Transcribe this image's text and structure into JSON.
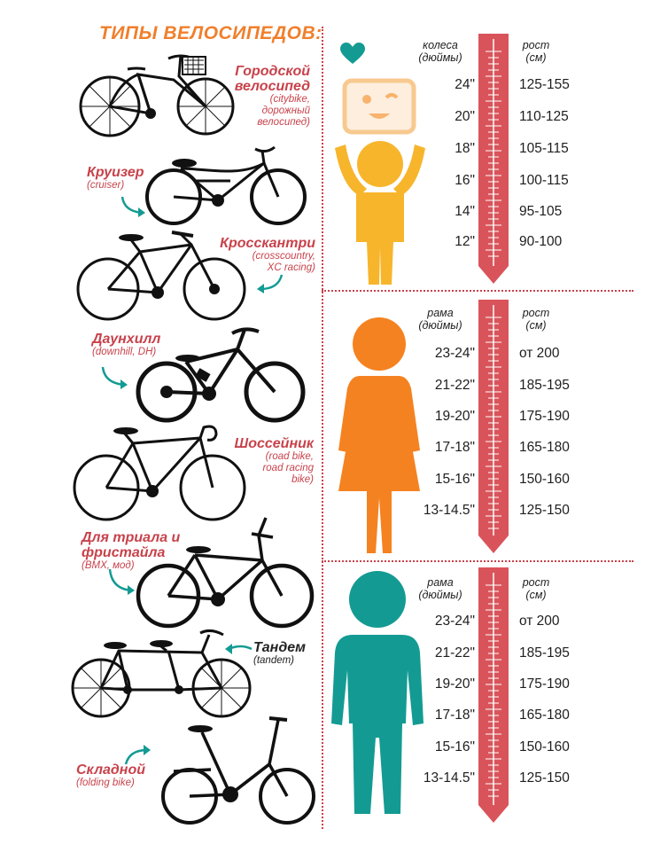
{
  "title": "ТИПЫ ВЕЛОСИПЕДОВ:",
  "bikes": [
    {
      "name": "Городской велосипед",
      "name_line1": "Городской",
      "name_line2": "велосипед",
      "sub_lines": [
        "(citybike,",
        "дорожный",
        "велосипед)"
      ]
    },
    {
      "name": "Круизер",
      "sub_lines": [
        "(cruiser)"
      ]
    },
    {
      "name": "Кросскантри",
      "sub_lines": [
        "(crosscountry,",
        "XC racing)"
      ]
    },
    {
      "name": "Даунхилл",
      "sub_lines": [
        "(downhill, DH)"
      ]
    },
    {
      "name": "Шоссейник",
      "sub_lines": [
        "(road bike,",
        "road racing",
        "bike)"
      ]
    },
    {
      "name": "Для триала и фристайла",
      "name_line1": "Для триала и",
      "name_line2": "фристайла",
      "sub_lines": [
        "(BMX, мод)"
      ]
    },
    {
      "name": "Тандем",
      "sub_lines": [
        "(tandem)"
      ]
    },
    {
      "name": "Складной",
      "sub_lines": [
        "(folding bike)"
      ]
    }
  ],
  "sections": [
    {
      "figure": "child-icon",
      "left_header": [
        "колеса",
        "(дюймы)"
      ],
      "right_header": [
        "рост",
        "(см)"
      ],
      "rows": [
        {
          "size": "24\"",
          "height": "125-155"
        },
        {
          "size": "20\"",
          "height": "110-125"
        },
        {
          "size": "18\"",
          "height": "105-115"
        },
        {
          "size": "16\"",
          "height": "100-115"
        },
        {
          "size": "14\"",
          "height": "95-105"
        },
        {
          "size": "12\"",
          "height": "90-100"
        }
      ]
    },
    {
      "figure": "woman-icon",
      "left_header": [
        "рама",
        "(дюймы)"
      ],
      "right_header": [
        "рост",
        "(см)"
      ],
      "rows": [
        {
          "size": "23-24\"",
          "height": "от 200"
        },
        {
          "size": "21-22\"",
          "height": "185-195"
        },
        {
          "size": "19-20\"",
          "height": "175-190"
        },
        {
          "size": "17-18\"",
          "height": "165-180"
        },
        {
          "size": "15-16\"",
          "height": "150-160"
        },
        {
          "size": "13-14.5\"",
          "height": "125-150"
        }
      ]
    },
    {
      "figure": "man-icon",
      "left_header": [
        "рама",
        "(дюймы)"
      ],
      "right_header": [
        "рост",
        "(см)"
      ],
      "rows": [
        {
          "size": "23-24\"",
          "height": "от 200"
        },
        {
          "size": "21-22\"",
          "height": "185-195"
        },
        {
          "size": "19-20\"",
          "height": "175-190"
        },
        {
          "size": "17-18\"",
          "height": "165-180"
        },
        {
          "size": "15-16\"",
          "height": "150-160"
        },
        {
          "size": "13-14.5\"",
          "height": "125-150"
        }
      ]
    }
  ],
  "colors": {
    "title": "#f07f2c",
    "label": "#c8424b",
    "ruler": "#d9545a",
    "child": "#f7b52c",
    "woman": "#f58220",
    "man": "#139b93",
    "heart": "#139b93",
    "face_frame": "#f8c98f",
    "face_fill": "#fdeede"
  }
}
